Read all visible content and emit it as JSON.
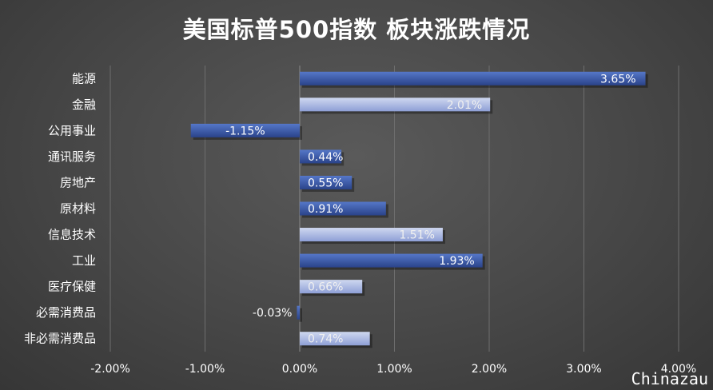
{
  "chart_data": {
    "type": "bar",
    "orientation": "horizontal",
    "title": "美国标普500指数 板块涨跌情况",
    "categories": [
      "能源",
      "金融",
      "公用事业",
      "通讯服务",
      "房地产",
      "原材料",
      "信息技术",
      "工业",
      "医疗保健",
      "必需消费品",
      "非必需消费品"
    ],
    "values": [
      3.65,
      2.01,
      -1.15,
      0.44,
      0.55,
      0.91,
      1.51,
      1.93,
      0.66,
      -0.03,
      0.74
    ],
    "data_labels": [
      "3.65%",
      "2.01%",
      "-1.15%",
      "0.44%",
      "0.55%",
      "0.91%",
      "1.51%",
      "1.93%",
      "0.66%",
      "-0.03%",
      "0.74%"
    ],
    "bar_style": [
      "dark",
      "light",
      "dark",
      "dark",
      "dark",
      "dark",
      "light",
      "dark",
      "light",
      "dark",
      "light"
    ],
    "xlim": [
      -2,
      4
    ],
    "xticks": [
      -2,
      -1,
      0,
      1,
      2,
      3,
      4
    ],
    "xtick_labels": [
      "-2.00%",
      "-1.00%",
      "0.00%",
      "1.00%",
      "2.00%",
      "3.00%",
      "4.00%"
    ],
    "xlabel": "",
    "ylabel": "",
    "grid": "vertical",
    "legend": "none",
    "colors": {
      "dark_bar_top": "#4f6fc0",
      "dark_bar_bottom": "#2a438a",
      "light_bar_top": "#c3cdeb",
      "light_bar_bottom": "#8e9fd6",
      "label_text": "#ffffff",
      "light_label_text": "#f0f0f0"
    }
  },
  "watermark": "Chinazau"
}
